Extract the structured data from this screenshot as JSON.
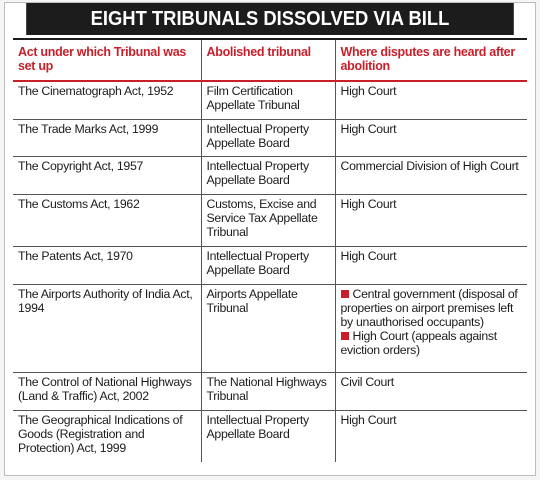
{
  "title": "EIGHT TRIBUNALS DISSOLVED VIA BILL",
  "headers": {
    "act": "Act under which Tribunal was set up",
    "tribunal": "Abolished tribunal",
    "disputes": "Where disputes are heard after abolition"
  },
  "rows": [
    {
      "act": "The Cinematograph Act, 1952",
      "tribunal": "Film Certification Appellate Tribunal",
      "disputes": "High Court"
    },
    {
      "act": "The Trade Marks Act, 1999",
      "tribunal": "Intellectual Property Appellate Board",
      "disputes": "High Court"
    },
    {
      "act": "The Copyright Act, 1957",
      "tribunal": "Intellectual Property Appellate Board",
      "disputes": "Commercial Division of High Court"
    },
    {
      "act": "The Customs Act, 1962",
      "tribunal": "Customs, Excise and Service Tax Appellate Tribunal",
      "disputes": "High Court"
    },
    {
      "act": "The Patents Act, 1970",
      "tribunal": "Intellectual Property Appellate Board",
      "disputes": "High Court"
    },
    {
      "act": "The Airports Authority of India Act, 1994",
      "tribunal": "Airports Appellate Tribunal",
      "disputes_items": [
        "Central government (disposal of properties on airport premises left by unauthorised occupants)",
        "High Court (appeals against eviction orders)"
      ]
    },
    {
      "act": "The Control of National Highways (Land & Traffic) Act, 2002",
      "tribunal": "The National Highways Tribunal",
      "disputes": "Civil Court"
    },
    {
      "act": "The Geographical Indications of Goods (Registration and Protection) Act, 1999",
      "tribunal": "Intellectual Property Appellate Board",
      "disputes": "High Court"
    }
  ],
  "colors": {
    "header_text": "#c8202a",
    "bullet": "#c8202a",
    "title_bg": "#1c1c1c"
  }
}
